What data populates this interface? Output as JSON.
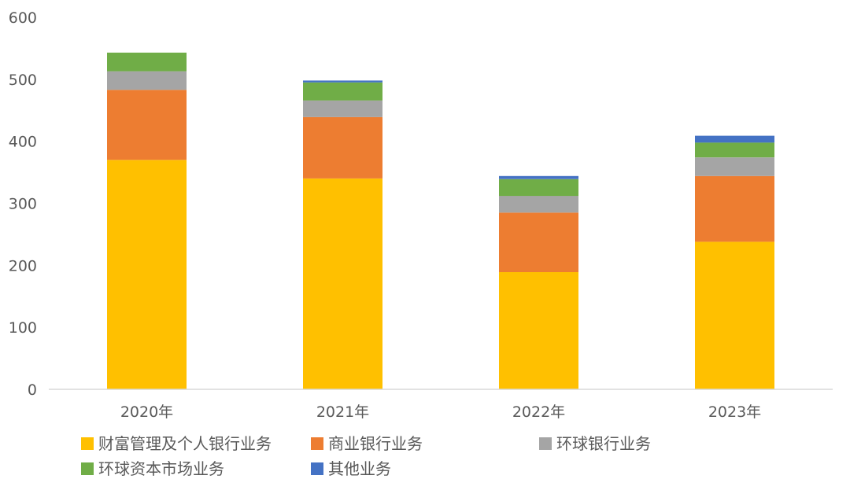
{
  "chart_data": {
    "type": "bar",
    "stacked": true,
    "categories": [
      "2020年",
      "2021年",
      "2022年",
      "2023年"
    ],
    "series": [
      {
        "name": "财富管理及个人银行业务",
        "color": "#FFC000",
        "values": [
          370,
          340,
          189,
          238
        ]
      },
      {
        "name": "商业银行业务",
        "color": "#ED7D31",
        "values": [
          113,
          99,
          96,
          106
        ]
      },
      {
        "name": "环球银行业务",
        "color": "#A5A5A5",
        "values": [
          30,
          27,
          27,
          30
        ]
      },
      {
        "name": "环球资本市场业务",
        "color": "#70AD47",
        "values": [
          30,
          29,
          27,
          24
        ]
      },
      {
        "name": "其他业务",
        "color": "#4472C4",
        "values": [
          0,
          3,
          5,
          11
        ]
      }
    ],
    "ylim": [
      0,
      600
    ],
    "yticks": [
      0,
      100,
      200,
      300,
      400,
      500,
      600
    ],
    "grid": false,
    "legend_position": "bottom"
  }
}
